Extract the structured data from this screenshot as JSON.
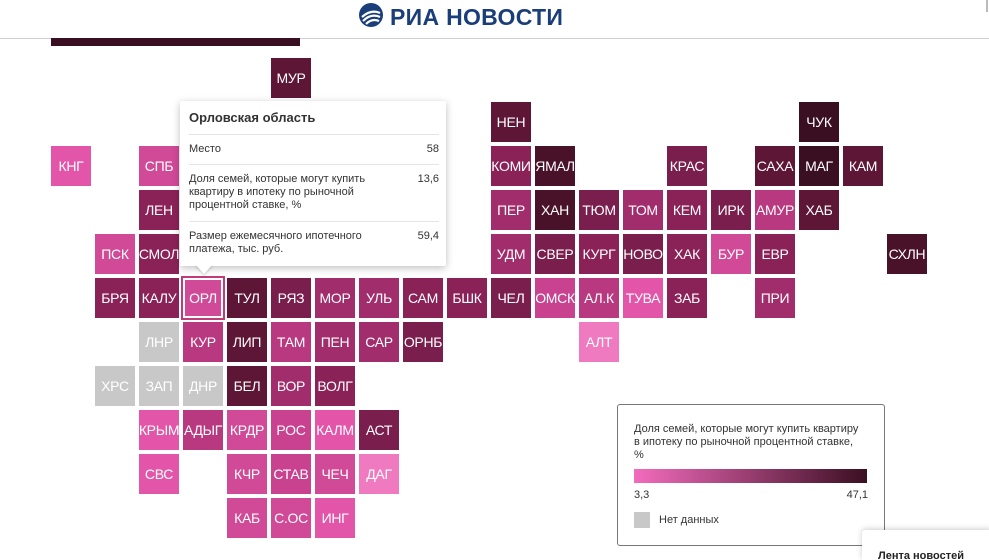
{
  "header": {
    "brand": "РИА НОВОСТИ",
    "brand_color": "#1a3e7a"
  },
  "tooltip": {
    "title": "Орловская область",
    "rows": [
      {
        "label": "Место",
        "value": "58"
      },
      {
        "label": "Доля семей, которые могут купить квартиру в ипотеку по рыночной процентной ставке, %",
        "value": "13,6"
      },
      {
        "label": "Размер ежемесячного ипотечного платежа, тыс. руб.",
        "value": "59,4"
      }
    ]
  },
  "legend": {
    "title": "Доля семей, которые могут купить квартиру в ипотеку по рыночной процентной ставке, %",
    "min": "3,3",
    "max": "47,1",
    "min_color": "#f36bbd",
    "max_color": "#3b0f22",
    "no_data_label": "Нет данных",
    "no_data_color": "#c8c8c8"
  },
  "side_panel": {
    "label": "Лента новостей"
  },
  "tiles": [
    {
      "code": "МУР",
      "col": 5,
      "row": 0,
      "color": "#5e1636"
    },
    {
      "code": "НЕН",
      "col": 10,
      "row": 1,
      "color": "#5e1636"
    },
    {
      "code": "ЧУК",
      "col": 17,
      "row": 1,
      "color": "#3b0f22"
    },
    {
      "code": "КНГ",
      "col": 0,
      "row": 2,
      "color": "#e255a8"
    },
    {
      "code": "СПБ",
      "col": 2,
      "row": 2,
      "color": "#d04a97"
    },
    {
      "code": "КОМИ",
      "col": 10,
      "row": 2,
      "color": "#8a2258"
    },
    {
      "code": "ЯМАЛ",
      "col": 11,
      "row": 2,
      "color": "#4a1229"
    },
    {
      "code": "КРАС",
      "col": 14,
      "row": 2,
      "color": "#7a1e4e"
    },
    {
      "code": "САХА",
      "col": 16,
      "row": 2,
      "color": "#5e1636"
    },
    {
      "code": "МАГ",
      "col": 17,
      "row": 2,
      "color": "#3b0f22"
    },
    {
      "code": "КАМ",
      "col": 18,
      "row": 2,
      "color": "#5e1636"
    },
    {
      "code": "ЛЕН",
      "col": 2,
      "row": 3,
      "color": "#8a2258"
    },
    {
      "code": "ПЕР",
      "col": 10,
      "row": 3,
      "color": "#a12d6c"
    },
    {
      "code": "ХАН",
      "col": 11,
      "row": 3,
      "color": "#4a1229"
    },
    {
      "code": "ТЮМ",
      "col": 12,
      "row": 3,
      "color": "#7a1e4e"
    },
    {
      "code": "ТОМ",
      "col": 13,
      "row": 3,
      "color": "#a12d6c"
    },
    {
      "code": "КЕМ",
      "col": 14,
      "row": 3,
      "color": "#8a2258"
    },
    {
      "code": "ИРК",
      "col": 15,
      "row": 3,
      "color": "#7a1e4e"
    },
    {
      "code": "АМУР",
      "col": 16,
      "row": 3,
      "color": "#b8397f"
    },
    {
      "code": "ХАБ",
      "col": 17,
      "row": 3,
      "color": "#5e1636"
    },
    {
      "code": "ПСК",
      "col": 1,
      "row": 4,
      "color": "#d04a97"
    },
    {
      "code": "СМОЛ",
      "col": 2,
      "row": 4,
      "color": "#8a2258"
    },
    {
      "code": "УДМ",
      "col": 10,
      "row": 4,
      "color": "#a12d6c"
    },
    {
      "code": "СВЕР",
      "col": 11,
      "row": 4,
      "color": "#7a1e4e"
    },
    {
      "code": "КУРГ",
      "col": 12,
      "row": 4,
      "color": "#8a2258"
    },
    {
      "code": "НОВО",
      "col": 13,
      "row": 4,
      "color": "#7a1e4e"
    },
    {
      "code": "ХАК",
      "col": 14,
      "row": 4,
      "color": "#8a2258"
    },
    {
      "code": "БУР",
      "col": 15,
      "row": 4,
      "color": "#d04a97"
    },
    {
      "code": "ЕВР",
      "col": 16,
      "row": 4,
      "color": "#8a2258"
    },
    {
      "code": "СХЛН",
      "col": 19,
      "row": 4,
      "color": "#4a1229"
    },
    {
      "code": "БРЯ",
      "col": 1,
      "row": 5,
      "color": "#8a2258"
    },
    {
      "code": "КАЛУ",
      "col": 2,
      "row": 5,
      "color": "#8a2258"
    },
    {
      "code": "ОРЛ",
      "col": 3,
      "row": 5,
      "color": "#d04a97",
      "selected": true
    },
    {
      "code": "ТУЛ",
      "col": 4,
      "row": 5,
      "color": "#5e1636"
    },
    {
      "code": "РЯЗ",
      "col": 5,
      "row": 5,
      "color": "#7a1e4e"
    },
    {
      "code": "МОР",
      "col": 6,
      "row": 5,
      "color": "#a12d6c"
    },
    {
      "code": "УЛЬ",
      "col": 7,
      "row": 5,
      "color": "#a12d6c"
    },
    {
      "code": "САМ",
      "col": 8,
      "row": 5,
      "color": "#8a2258"
    },
    {
      "code": "БШК",
      "col": 9,
      "row": 5,
      "color": "#8a2258"
    },
    {
      "code": "ЧЕЛ",
      "col": 10,
      "row": 5,
      "color": "#7a1e4e"
    },
    {
      "code": "ОМСК",
      "col": 11,
      "row": 5,
      "color": "#c84290"
    },
    {
      "code": "АЛ.К",
      "col": 12,
      "row": 5,
      "color": "#b8397f"
    },
    {
      "code": "ТУВА",
      "col": 13,
      "row": 5,
      "color": "#e255a8"
    },
    {
      "code": "ЗАБ",
      "col": 14,
      "row": 5,
      "color": "#8a2258"
    },
    {
      "code": "ПРИ",
      "col": 16,
      "row": 5,
      "color": "#a12d6c"
    },
    {
      "code": "ЛНР",
      "col": 2,
      "row": 6,
      "color": "#c8c8c8"
    },
    {
      "code": "КУР",
      "col": 3,
      "row": 6,
      "color": "#b8397f"
    },
    {
      "code": "ЛИП",
      "col": 4,
      "row": 6,
      "color": "#5e1636"
    },
    {
      "code": "ТАМ",
      "col": 5,
      "row": 6,
      "color": "#b8397f"
    },
    {
      "code": "ПЕН",
      "col": 6,
      "row": 6,
      "color": "#a12d6c"
    },
    {
      "code": "САР",
      "col": 7,
      "row": 6,
      "color": "#a12d6c"
    },
    {
      "code": "ОРНБ",
      "col": 8,
      "row": 6,
      "color": "#7a1e4e"
    },
    {
      "code": "АЛТ",
      "col": 12,
      "row": 6,
      "color": "#f07ac0"
    },
    {
      "code": "ХРС",
      "col": 1,
      "row": 7,
      "color": "#c8c8c8"
    },
    {
      "code": "ЗАП",
      "col": 2,
      "row": 7,
      "color": "#c8c8c8"
    },
    {
      "code": "ДНР",
      "col": 3,
      "row": 7,
      "color": "#c8c8c8"
    },
    {
      "code": "БЕЛ",
      "col": 4,
      "row": 7,
      "color": "#5e1636"
    },
    {
      "code": "ВОР",
      "col": 5,
      "row": 7,
      "color": "#a12d6c"
    },
    {
      "code": "ВОЛГ",
      "col": 6,
      "row": 7,
      "color": "#8a2258"
    },
    {
      "code": "КРЫМ",
      "col": 2,
      "row": 8,
      "color": "#e255a8"
    },
    {
      "code": "АДЫГ",
      "col": 3,
      "row": 8,
      "color": "#b8397f"
    },
    {
      "code": "КРДР",
      "col": 4,
      "row": 8,
      "color": "#d04a97"
    },
    {
      "code": "РОС",
      "col": 5,
      "row": 8,
      "color": "#c84290"
    },
    {
      "code": "КАЛМ",
      "col": 6,
      "row": 8,
      "color": "#e255a8"
    },
    {
      "code": "АСТ",
      "col": 7,
      "row": 8,
      "color": "#7a1e4e"
    },
    {
      "code": "СВС",
      "col": 2,
      "row": 9,
      "color": "#e255a8"
    },
    {
      "code": "КЧР",
      "col": 4,
      "row": 9,
      "color": "#d04a97"
    },
    {
      "code": "СТАВ",
      "col": 5,
      "row": 9,
      "color": "#c84290"
    },
    {
      "code": "ЧЕЧ",
      "col": 6,
      "row": 9,
      "color": "#d04a97"
    },
    {
      "code": "ДАГ",
      "col": 7,
      "row": 9,
      "color": "#f07ac0"
    },
    {
      "code": "КАБ",
      "col": 4,
      "row": 10,
      "color": "#d04a97"
    },
    {
      "code": "С.ОС",
      "col": 5,
      "row": 10,
      "color": "#d04a97"
    },
    {
      "code": "ИНГ",
      "col": 6,
      "row": 10,
      "color": "#e255a8"
    }
  ]
}
